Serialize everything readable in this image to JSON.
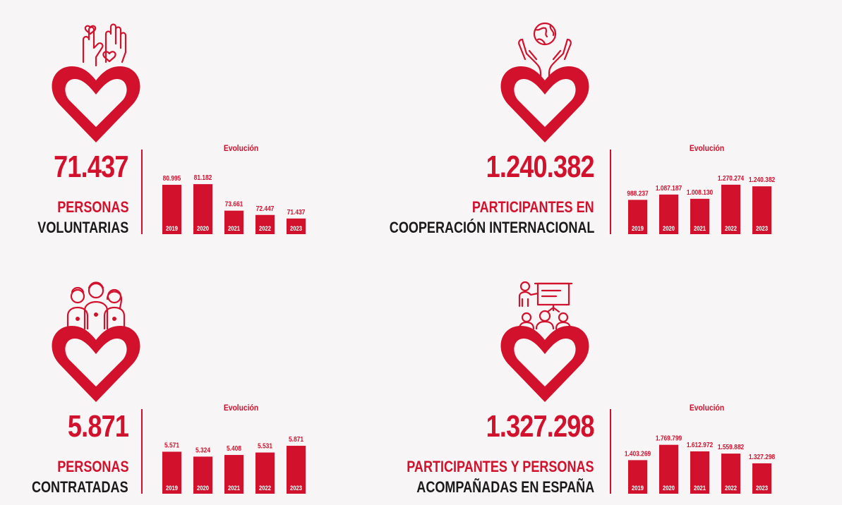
{
  "colors": {
    "accent": "#d2112d",
    "dark": "#1a1a1a",
    "background": "#f7f5f5"
  },
  "panels": [
    {
      "icon": "raised-hands-hearts-icon",
      "number": "71.437",
      "label_red": "PERSONAS",
      "label_dark": "VOLUNTARIAS"
    },
    {
      "icon": "hands-holding-globe-icon",
      "number": "1.240.382",
      "label_red": "PARTICIPANTES EN",
      "label_dark": "COOPERACIÓN INTERNACIONAL"
    },
    {
      "icon": "three-workers-icon",
      "number": "5.871",
      "label_red": "PERSONAS",
      "label_dark": "CONTRATADAS"
    },
    {
      "icon": "presentation-audience-icon",
      "number": "1.327.298",
      "label_red": "PARTICIPANTES Y PERSONAS",
      "label_dark": "ACOMPAÑADAS EN ESPAÑA"
    }
  ],
  "chart_data": [
    {
      "type": "bar",
      "title": "Evolución",
      "categories": [
        "2019",
        "2020",
        "2021",
        "2022",
        "2023"
      ],
      "values": [
        80995,
        81182,
        73661,
        72447,
        71437
      ],
      "value_labels": [
        "80.995",
        "81.182",
        "73.661",
        "72.447",
        "71.437"
      ],
      "ylim": [
        67000,
        83000
      ]
    },
    {
      "type": "bar",
      "title": "Evolución",
      "categories": [
        "2019",
        "2020",
        "2021",
        "2022",
        "2023"
      ],
      "values": [
        988237,
        1087187,
        1008130,
        1270274,
        1240382
      ],
      "value_labels": [
        "988.237",
        "1.087.187",
        "1.008.130",
        "1.270.274",
        "1.240.382"
      ],
      "ylim": [
        350000,
        1400000
      ]
    },
    {
      "type": "bar",
      "title": "Evolución",
      "categories": [
        "2019",
        "2020",
        "2021",
        "2022",
        "2023"
      ],
      "values": [
        5571,
        5324,
        5408,
        5531,
        5871
      ],
      "value_labels": [
        "5.571",
        "5.324",
        "5.408",
        "5.531",
        "5.871"
      ],
      "ylim": [
        3450,
        6300
      ]
    },
    {
      "type": "bar",
      "title": "Evolución",
      "categories": [
        "2019",
        "2020",
        "2021",
        "2022",
        "2023"
      ],
      "values": [
        1403269,
        1769799,
        1612972,
        1559882,
        1327298
      ],
      "value_labels": [
        "1.403.269",
        "1.769.799",
        "1.612.972",
        "1.559.882",
        "1.327.298"
      ],
      "ylim": [
        600000,
        1950000
      ]
    }
  ]
}
